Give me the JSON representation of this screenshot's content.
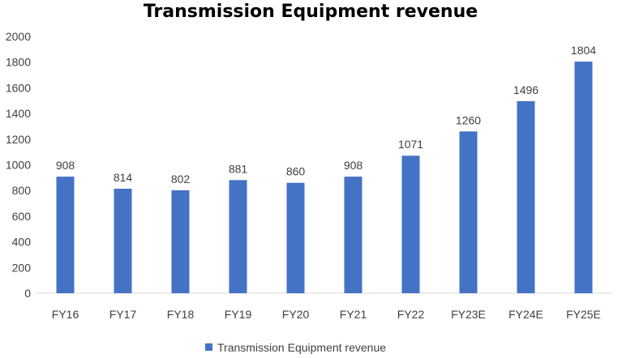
{
  "chart_data": {
    "type": "bar",
    "title": "Transmission Equipment revenue",
    "categories": [
      "FY16",
      "FY17",
      "FY18",
      "FY19",
      "FY20",
      "FY21",
      "FY22",
      "FY23E",
      "FY24E",
      "FY25E"
    ],
    "series": [
      {
        "name": "Transmission Equipment revenue",
        "values": [
          908,
          814,
          802,
          881,
          860,
          908,
          1071,
          1260,
          1496,
          1804
        ],
        "color": "#4472C4"
      }
    ],
    "ylim": [
      0,
      2000
    ],
    "yticks": [
      "0",
      "200",
      "400",
      "600",
      "800",
      "1000",
      "1200",
      "1400",
      "1600",
      "1800",
      "2000"
    ],
    "grid": false,
    "legend_position": "bottom"
  }
}
